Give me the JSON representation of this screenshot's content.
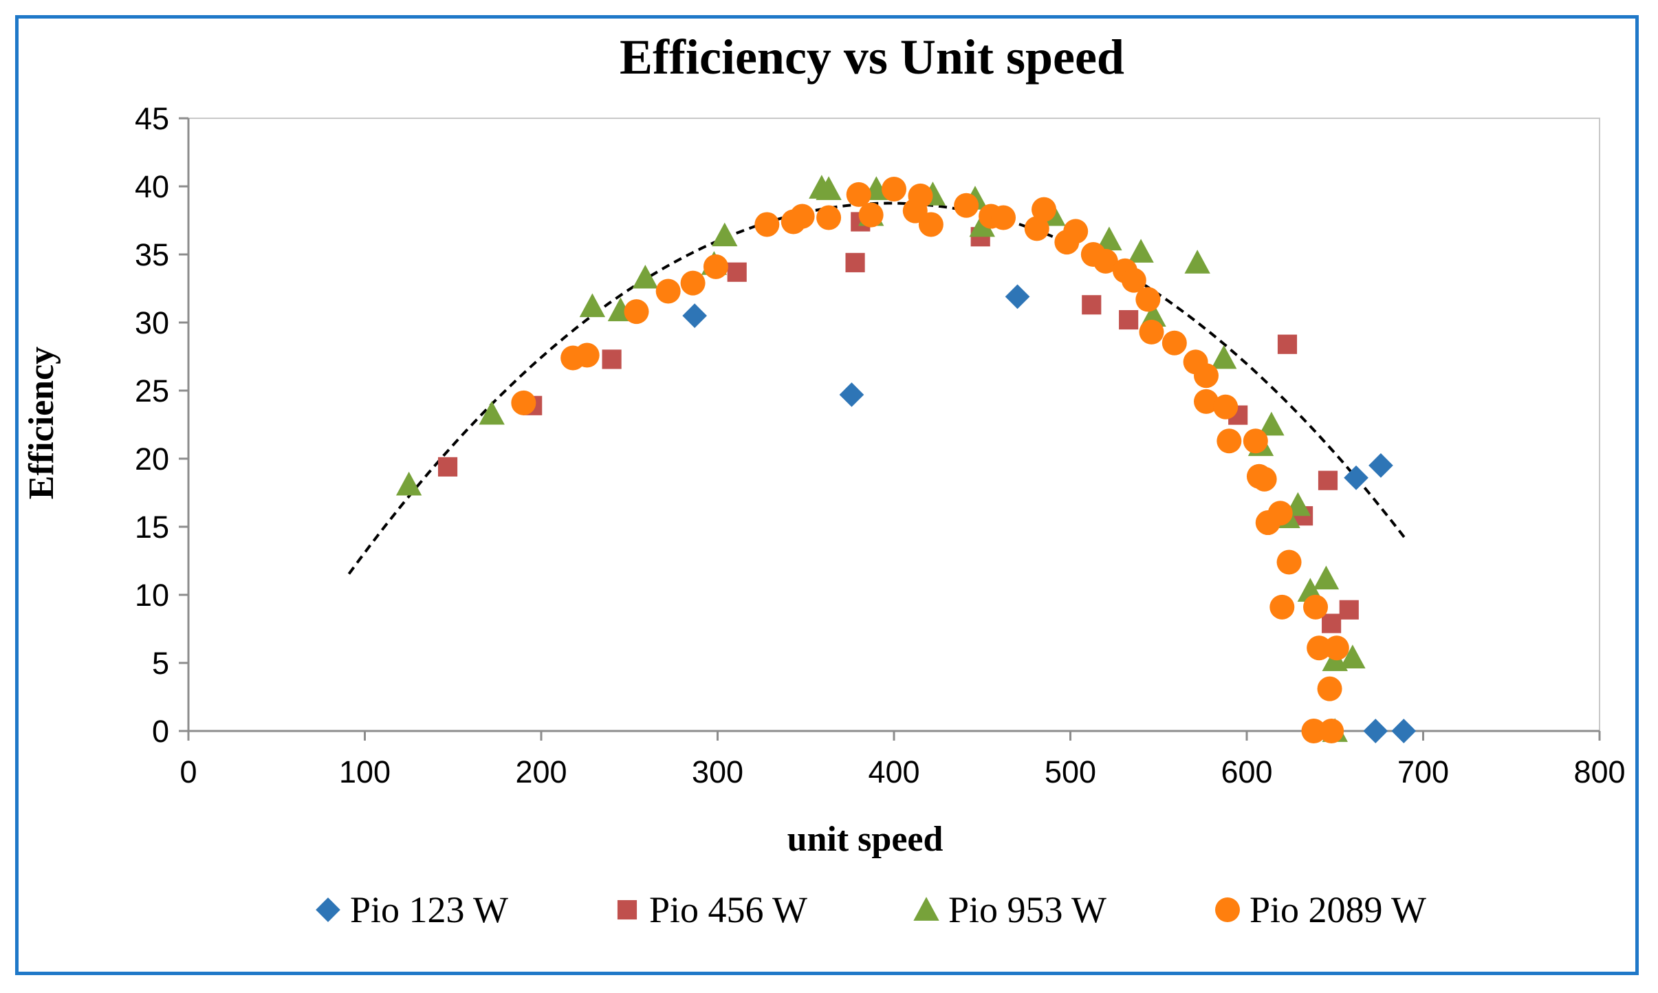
{
  "chart_data": {
    "type": "scatter",
    "title": "Efficiency vs Unit speed",
    "xlabel": "unit speed",
    "ylabel": "Efficiency",
    "xlim": [
      0,
      800
    ],
    "ylim": [
      0,
      45
    ],
    "xticks": [
      0,
      100,
      200,
      300,
      400,
      500,
      600,
      700,
      800
    ],
    "yticks": [
      0,
      5,
      10,
      15,
      20,
      25,
      30,
      35,
      40,
      45
    ],
    "grid": false,
    "legend_position": "bottom",
    "series": [
      {
        "name": "Pio 123 W",
        "marker": "diamond",
        "color": "#2E75B6",
        "points": [
          [
            287,
            30.5
          ],
          [
            376,
            24.7
          ],
          [
            470,
            31.9
          ],
          [
            662,
            18.6
          ],
          [
            676,
            19.5
          ],
          [
            673,
            0
          ],
          [
            689,
            0
          ]
        ]
      },
      {
        "name": "Pio 456 W",
        "marker": "square",
        "color": "#C0504D",
        "points": [
          [
            147,
            19.4
          ],
          [
            195,
            23.9
          ],
          [
            240,
            27.3
          ],
          [
            311,
            33.7
          ],
          [
            378,
            34.4
          ],
          [
            381,
            37.4
          ],
          [
            449,
            36.3
          ],
          [
            512,
            31.3
          ],
          [
            533,
            30.2
          ],
          [
            595,
            23.2
          ],
          [
            623,
            28.4
          ],
          [
            632,
            15.8
          ],
          [
            646,
            18.4
          ],
          [
            648,
            7.9
          ],
          [
            658,
            8.9
          ]
        ]
      },
      {
        "name": "Pio 953 W",
        "marker": "triangle",
        "color": "#77A23A",
        "points": [
          [
            125,
            18.1
          ],
          [
            172,
            23.3
          ],
          [
            229,
            31.2
          ],
          [
            245,
            30.9
          ],
          [
            259,
            33.3
          ],
          [
            298,
            34.3
          ],
          [
            304,
            36.4
          ],
          [
            359,
            39.9
          ],
          [
            363,
            39.8
          ],
          [
            387,
            37.9
          ],
          [
            390,
            39.8
          ],
          [
            422,
            39.4
          ],
          [
            446,
            39.1
          ],
          [
            450,
            37.1
          ],
          [
            490,
            37.9
          ],
          [
            522,
            36.1
          ],
          [
            540,
            35.2
          ],
          [
            547,
            30.5
          ],
          [
            572,
            34.4
          ],
          [
            587,
            27.4
          ],
          [
            608,
            21.0
          ],
          [
            614,
            22.5
          ],
          [
            623,
            15.7
          ],
          [
            629,
            16.6
          ],
          [
            636,
            10.3
          ],
          [
            645,
            11.2
          ],
          [
            650,
            5.2
          ],
          [
            660,
            5.4
          ],
          [
            650,
            0
          ]
        ]
      },
      {
        "name": "Pio 2089 W",
        "marker": "circle",
        "color": "#FF7F0E",
        "points": [
          [
            190,
            24.1
          ],
          [
            218,
            27.4
          ],
          [
            226,
            27.6
          ],
          [
            254,
            30.8
          ],
          [
            272,
            32.3
          ],
          [
            286,
            32.9
          ],
          [
            299,
            34.1
          ],
          [
            328,
            37.2
          ],
          [
            343,
            37.4
          ],
          [
            348,
            37.8
          ],
          [
            363,
            37.7
          ],
          [
            380,
            39.4
          ],
          [
            387,
            37.9
          ],
          [
            400,
            39.8
          ],
          [
            412,
            38.2
          ],
          [
            415,
            39.3
          ],
          [
            421,
            37.2
          ],
          [
            441,
            38.6
          ],
          [
            455,
            37.8
          ],
          [
            462,
            37.7
          ],
          [
            481,
            36.9
          ],
          [
            485,
            38.3
          ],
          [
            498,
            35.9
          ],
          [
            503,
            36.7
          ],
          [
            513,
            35.0
          ],
          [
            520,
            34.5
          ],
          [
            531,
            33.8
          ],
          [
            536,
            33.1
          ],
          [
            544,
            31.7
          ],
          [
            546,
            29.3
          ],
          [
            559,
            28.5
          ],
          [
            571,
            27.1
          ],
          [
            577,
            26.1
          ],
          [
            577,
            24.2
          ],
          [
            588,
            23.8
          ],
          [
            590,
            21.3
          ],
          [
            605,
            21.3
          ],
          [
            607,
            18.7
          ],
          [
            610,
            18.5
          ],
          [
            612,
            15.3
          ],
          [
            619,
            16.0
          ],
          [
            620,
            9.1
          ],
          [
            624,
            12.4
          ],
          [
            639,
            9.1
          ],
          [
            641,
            6.1
          ],
          [
            647,
            3.1
          ],
          [
            651,
            6.1
          ],
          [
            638,
            0
          ],
          [
            648,
            0
          ]
        ]
      }
    ],
    "trendline": {
      "type": "polynomial",
      "style": "dashed",
      "color": "#000000",
      "x_range": [
        91,
        690
      ],
      "coefficients": [
        -0.000289,
        0.23,
        -7.0
      ]
    }
  }
}
